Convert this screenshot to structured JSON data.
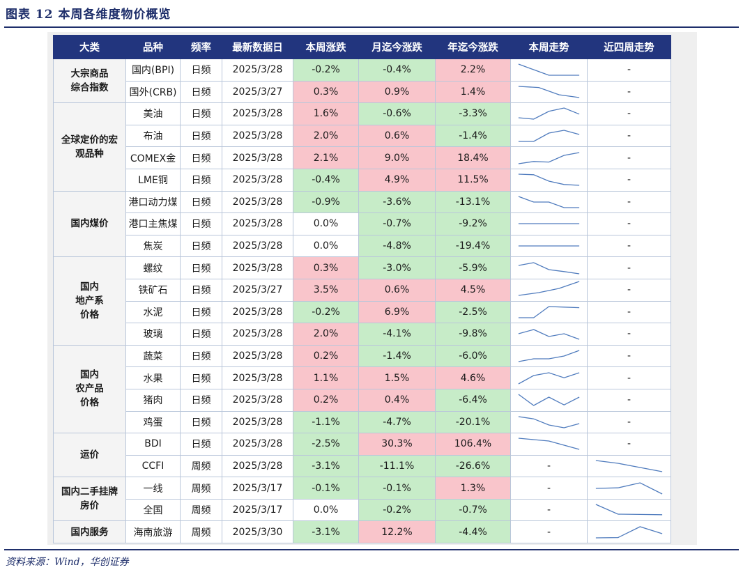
{
  "figure_title": "图表 12    本周各维度物价概览",
  "source": "资料来源：Wind，华创证券",
  "headers": [
    "大类",
    "品种",
    "频率",
    "最新数据日",
    "本周涨跌",
    "月迄今涨跌",
    "年迄今涨跌",
    "本周走势",
    "近四周走势"
  ],
  "categories": [
    {
      "label": "大宗商品\n综合指数",
      "rows": 2
    },
    {
      "label": "全球定价的宏\n观品种",
      "rows": 4
    },
    {
      "label": "国内煤价",
      "rows": 3
    },
    {
      "label": "国内\n地产系\n价格",
      "rows": 4
    },
    {
      "label": "国内\n农产品\n价格",
      "rows": 4
    },
    {
      "label": "运价",
      "rows": 2
    },
    {
      "label": "国内二手挂牌\n房价",
      "rows": 2
    },
    {
      "label": "国内服务",
      "rows": 1
    }
  ],
  "rows": [
    {
      "item": "国内(BPI)",
      "freq": "日频",
      "date": "2025/3/28",
      "wk": "-0.2%",
      "mtd": "-0.4%",
      "ytd": "2.2%",
      "wk_trend": [
        5,
        3,
        1,
        1,
        1
      ],
      "m4_trend": null
    },
    {
      "item": "国外(CRB)",
      "freq": "日频",
      "date": "2025/3/27",
      "wk": "0.3%",
      "mtd": "0.9%",
      "ytd": "1.4%",
      "wk_trend": [
        5,
        4.6,
        2,
        1
      ],
      "m4_trend": null
    },
    {
      "item": "美油",
      "freq": "日频",
      "date": "2025/3/28",
      "wk": "1.6%",
      "mtd": "-0.6%",
      "ytd": "-3.3%",
      "wk_trend": [
        1.5,
        1,
        3.8,
        5,
        2.8
      ],
      "m4_trend": null
    },
    {
      "item": "布油",
      "freq": "日频",
      "date": "2025/3/28",
      "wk": "2.0%",
      "mtd": "0.6%",
      "ytd": "-1.4%",
      "wk_trend": [
        1,
        1,
        4,
        5,
        3.5
      ],
      "m4_trend": null
    },
    {
      "item": "COMEX金",
      "freq": "日频",
      "date": "2025/3/28",
      "wk": "2.1%",
      "mtd": "9.0%",
      "ytd": "18.4%",
      "wk_trend": [
        1,
        1.8,
        1.6,
        4,
        5
      ],
      "m4_trend": null
    },
    {
      "item": "LME铜",
      "freq": "日频",
      "date": "2025/3/28",
      "wk": "-0.4%",
      "mtd": "4.9%",
      "ytd": "11.5%",
      "wk_trend": [
        5,
        4.8,
        2.5,
        1.3,
        1
      ],
      "m4_trend": null
    },
    {
      "item": "港口动力煤",
      "freq": "日频",
      "date": "2025/3/28",
      "wk": "-0.9%",
      "mtd": "-3.6%",
      "ytd": "-13.1%",
      "wk_trend": [
        5,
        3,
        3,
        1,
        1
      ],
      "m4_trend": null
    },
    {
      "item": "港口主焦煤",
      "freq": "日频",
      "date": "2025/3/28",
      "wk": "0.0%",
      "mtd": "-0.7%",
      "ytd": "-9.2%",
      "wk_trend": [
        3,
        3,
        3,
        3,
        3
      ],
      "m4_trend": null
    },
    {
      "item": "焦炭",
      "freq": "日频",
      "date": "2025/3/28",
      "wk": "0.0%",
      "mtd": "-4.8%",
      "ytd": "-19.4%",
      "wk_trend": [
        3,
        3,
        3,
        3,
        3
      ],
      "m4_trend": null
    },
    {
      "item": "螺纹",
      "freq": "日频",
      "date": "2025/3/28",
      "wk": "0.3%",
      "mtd": "-3.0%",
      "ytd": "-5.9%",
      "wk_trend": [
        4,
        5,
        2.5,
        1.8,
        1
      ],
      "m4_trend": null
    },
    {
      "item": "铁矿石",
      "freq": "日频",
      "date": "2025/3/27",
      "wk": "3.5%",
      "mtd": "0.6%",
      "ytd": "4.5%",
      "wk_trend": [
        1,
        2,
        3.5,
        6
      ],
      "m4_trend": null
    },
    {
      "item": "水泥",
      "freq": "日频",
      "date": "2025/3/28",
      "wk": "-0.2%",
      "mtd": "6.9%",
      "ytd": "-2.5%",
      "wk_trend": [
        1,
        1,
        5,
        4.8,
        4.6
      ],
      "m4_trend": null
    },
    {
      "item": "玻璃",
      "freq": "日频",
      "date": "2025/3/28",
      "wk": "2.0%",
      "mtd": "-4.1%",
      "ytd": "-9.8%",
      "wk_trend": [
        3,
        4.5,
        2,
        3,
        1
      ],
      "m4_trend": null
    },
    {
      "item": "蔬菜",
      "freq": "日频",
      "date": "2025/3/28",
      "wk": "0.2%",
      "mtd": "-1.4%",
      "ytd": "-6.0%",
      "wk_trend": [
        1,
        2,
        2,
        3,
        5
      ],
      "m4_trend": null
    },
    {
      "item": "水果",
      "freq": "日频",
      "date": "2025/3/28",
      "wk": "1.1%",
      "mtd": "1.5%",
      "ytd": "4.6%",
      "wk_trend": [
        1,
        4,
        5,
        3.2,
        5
      ],
      "m4_trend": null
    },
    {
      "item": "猪肉",
      "freq": "日频",
      "date": "2025/3/28",
      "wk": "0.2%",
      "mtd": "0.4%",
      "ytd": "-6.4%",
      "wk_trend": [
        5,
        1,
        4,
        1.2,
        4
      ],
      "m4_trend": null
    },
    {
      "item": "鸡蛋",
      "freq": "日频",
      "date": "2025/3/28",
      "wk": "-1.1%",
      "mtd": "-4.7%",
      "ytd": "-20.1%",
      "wk_trend": [
        5,
        4.2,
        2,
        1,
        2.5
      ],
      "m4_trend": null
    },
    {
      "item": "BDI",
      "freq": "日频",
      "date": "2025/3/28",
      "wk": "-2.5%",
      "mtd": "30.3%",
      "ytd": "106.4%",
      "wk_trend": [
        5,
        4.5,
        4,
        2.5,
        1
      ],
      "m4_trend": null
    },
    {
      "item": "CCFI",
      "freq": "周频",
      "date": "2025/3/28",
      "wk": "-3.1%",
      "mtd": "-11.1%",
      "ytd": "-26.6%",
      "wk_trend": null,
      "m4_trend": [
        5,
        4,
        2.5,
        1
      ]
    },
    {
      "item": "一线",
      "freq": "周频",
      "date": "2025/3/17",
      "wk": "-0.1%",
      "mtd": "-0.1%",
      "ytd": "1.3%",
      "wk_trend": null,
      "m4_trend": [
        3,
        3.2,
        5,
        1
      ]
    },
    {
      "item": "全国",
      "freq": "周频",
      "date": "2025/3/17",
      "wk": "0.0%",
      "mtd": "-0.2%",
      "ytd": "-0.7%",
      "wk_trend": null,
      "m4_trend": [
        5,
        1.5,
        1.4,
        1.3
      ]
    },
    {
      "item": "海南旅游",
      "freq": "周频",
      "date": "2025/3/30",
      "wk": "-3.1%",
      "mtd": "12.2%",
      "ytd": "-4.4%",
      "wk_trend": null,
      "m4_trend": [
        1,
        1.1,
        5,
        2.5
      ]
    }
  ],
  "empty_mark": "-",
  "colors": {
    "header": "#22357e",
    "up": "#f9c5cb",
    "down": "#c7ecc8",
    "line": "#4f7bbd",
    "title": "#1f2f6b"
  }
}
